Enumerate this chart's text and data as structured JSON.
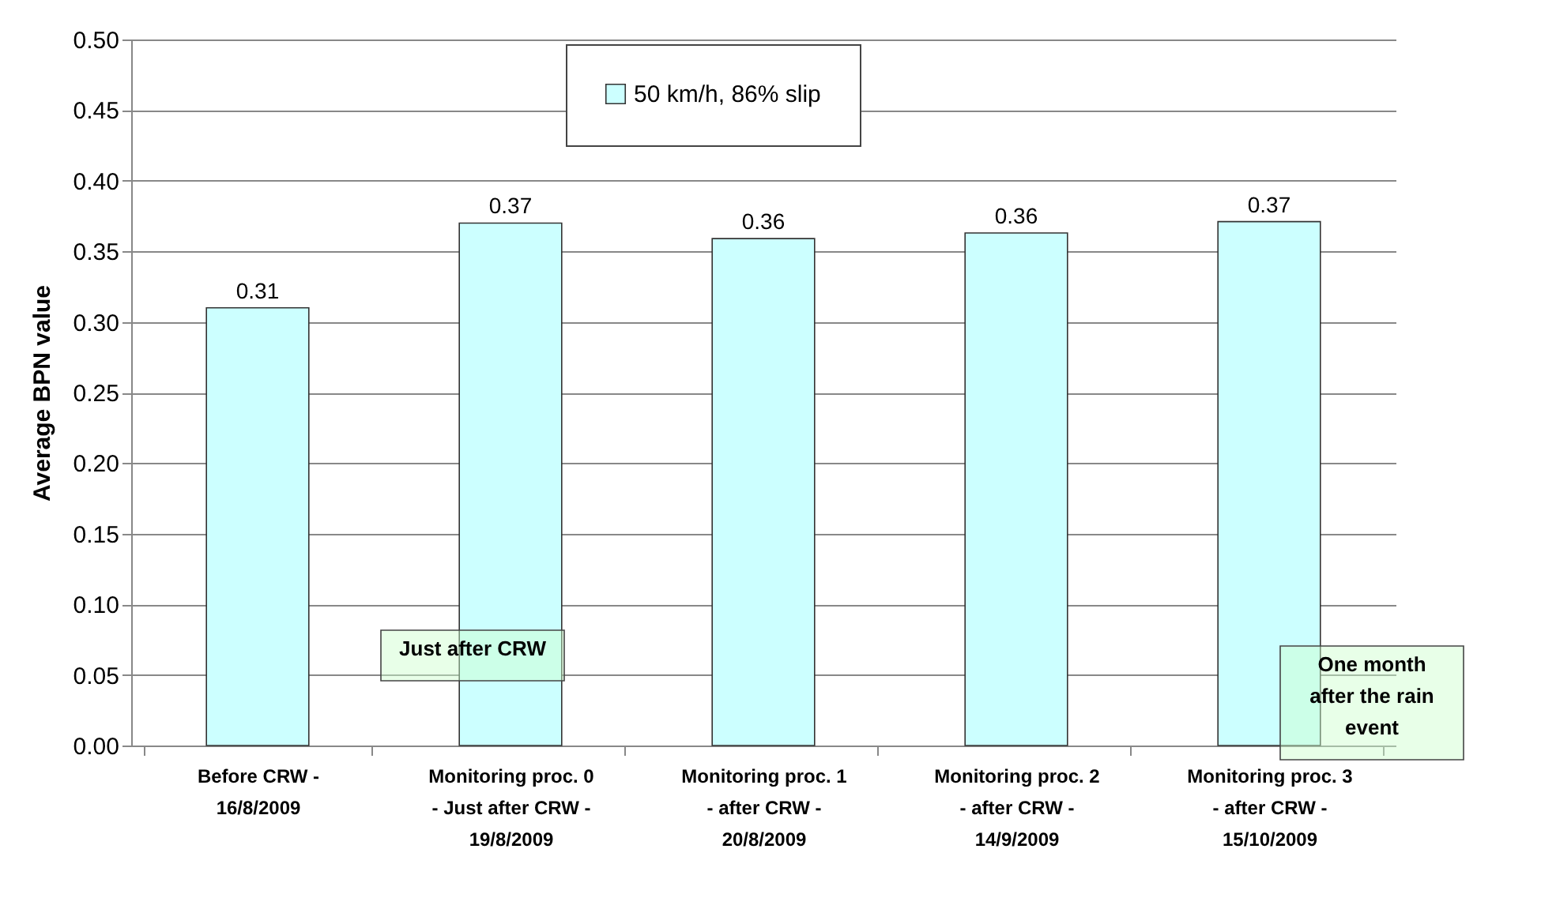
{
  "chart_data": {
    "type": "bar",
    "ylabel": "Average BPN value",
    "categories": [
      "Before CRW - 16/8/2009",
      "Monitoring proc. 0 - Just after CRW - 19/8/2009",
      "Monitoring proc. 1 - after CRW - 20/8/2009",
      "Monitoring proc. 2 - after CRW - 14/9/2009",
      "Monitoring proc. 3 - after CRW - 15/10/2009"
    ],
    "series": [
      {
        "name": "50 km/h, 86% slip",
        "color": "#ccffff",
        "values": [
          0.31,
          0.37,
          0.359,
          0.363,
          0.371
        ],
        "value_labels": [
          "0.31",
          "0.37",
          "0.36",
          "0.36",
          "0.37"
        ]
      }
    ],
    "ylim": [
      0,
      0.5
    ],
    "yticks": [
      {
        "value": 0,
        "label": "0.00"
      },
      {
        "value": 0.05,
        "label": "0.05"
      },
      {
        "value": 0.1,
        "label": "0.10"
      },
      {
        "value": 0.15,
        "label": "0.15"
      },
      {
        "value": 0.2,
        "label": "0.20"
      },
      {
        "value": 0.25,
        "label": "0.25"
      },
      {
        "value": 0.3,
        "label": "0.30"
      },
      {
        "value": 0.35,
        "label": "0.35"
      },
      {
        "value": 0.4,
        "label": "0.40"
      },
      {
        "value": 0.45,
        "label": "0.45"
      },
      {
        "value": 0.5,
        "label": "0.50"
      }
    ],
    "grid": "y",
    "legend": "top",
    "annotations": [
      "Just after CRW",
      "One month after the rain event"
    ]
  }
}
